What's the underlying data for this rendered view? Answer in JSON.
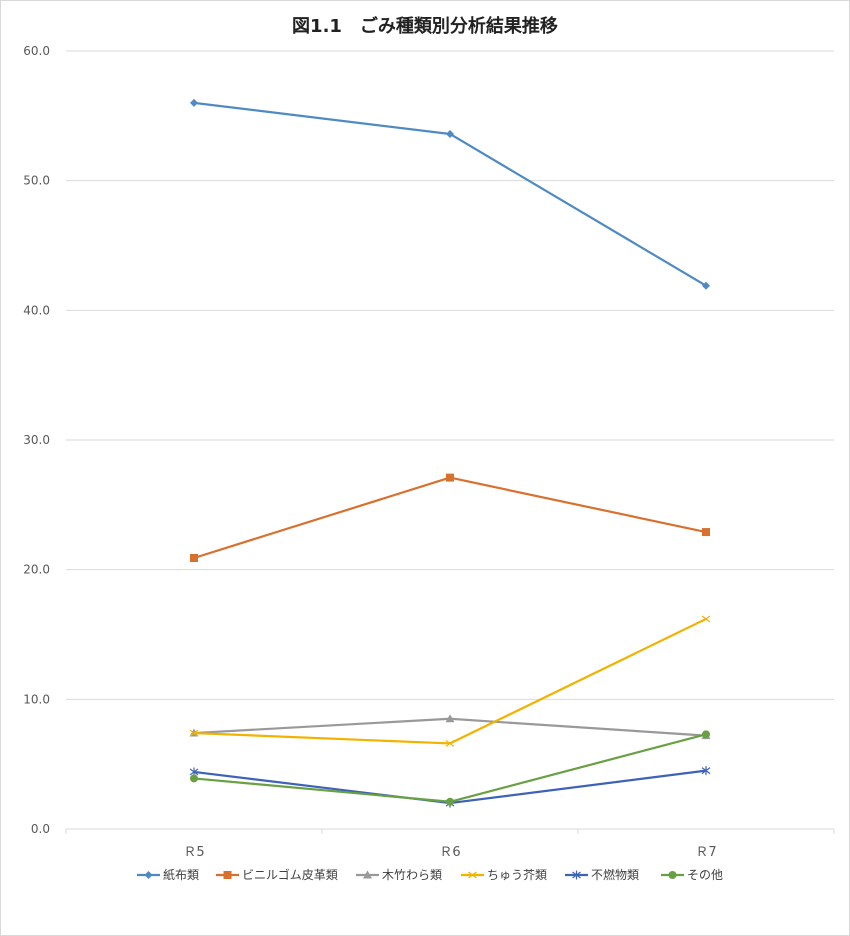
{
  "chart_data": {
    "type": "line",
    "title": "図1.1　ごみ種類別分析結果推移",
    "categories": [
      "Ｒ5",
      "Ｒ6",
      "Ｒ7"
    ],
    "ylim": [
      0,
      60
    ],
    "yticks": [
      "0.0",
      "10.0",
      "20.0",
      "30.0",
      "40.0",
      "50.0",
      "60.0"
    ],
    "grid": true,
    "legend_position": "bottom",
    "series": [
      {
        "name": "紙布類",
        "values": [
          56.0,
          53.6,
          41.9
        ],
        "color": "#4f8ac3",
        "marker": "diamond"
      },
      {
        "name": "ビニルゴム皮革類",
        "values": [
          20.9,
          27.1,
          22.9
        ],
        "color": "#d8702e",
        "marker": "square"
      },
      {
        "name": "木竹わら類",
        "values": [
          7.4,
          8.5,
          7.2
        ],
        "color": "#999999",
        "marker": "triangle"
      },
      {
        "name": "ちゅう芥類",
        "values": [
          7.4,
          6.6,
          16.2
        ],
        "color": "#f2b200",
        "marker": "x"
      },
      {
        "name": "不燃物類",
        "values": [
          4.4,
          2.0,
          4.5
        ],
        "color": "#3d63b8",
        "marker": "star"
      },
      {
        "name": "その他",
        "values": [
          3.9,
          2.1,
          7.3
        ],
        "color": "#68a043",
        "marker": "circle"
      }
    ]
  }
}
